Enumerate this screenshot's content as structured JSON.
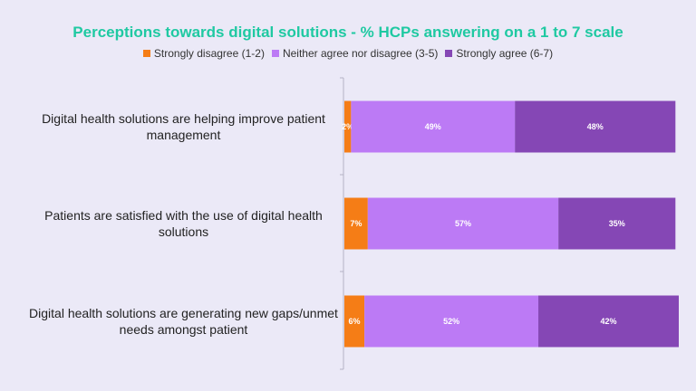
{
  "chart_data": {
    "type": "bar",
    "orientation": "horizontal",
    "stacked": true,
    "title": "Perceptions towards digital solutions - % HCPs answering on a 1 to 7 scale",
    "categories": [
      "Digital health solutions are helping improve patient management",
      "Patients are satisfied with the use of digital health solutions",
      "Digital health solutions  are generating new gaps/unmet needs amongst patient"
    ],
    "series": [
      {
        "name": "Strongly disagree (1-2)",
        "color": "#f57d16",
        "values": [
          2,
          7,
          6
        ]
      },
      {
        "name": "Neither agree nor disagree (3-5)",
        "color": "#bc7af5",
        "values": [
          49,
          57,
          52
        ]
      },
      {
        "name": "Strongly agree (6-7)",
        "color": "#8547b5",
        "values": [
          48,
          35,
          42
        ]
      }
    ],
    "data_label_suffix": "%",
    "legend_position": "top",
    "grid": false
  },
  "colors": {
    "title": "#1fc9a2",
    "background": "#ebe9f7"
  }
}
